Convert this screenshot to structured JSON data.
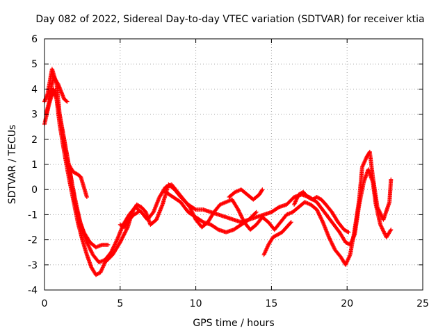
{
  "chart_data": {
    "type": "scatter",
    "title": "Day 082 of 2022, Sidereal Day-to-day VTEC variation (SDTVAR) for receiver ktia",
    "xlabel": "GPS time / hours",
    "ylabel": "SDTVAR / TECUs",
    "xlim": [
      0,
      25
    ],
    "ylim": [
      -4,
      6
    ],
    "x_ticks": [
      0,
      5,
      10,
      15,
      20,
      25
    ],
    "y_ticks": [
      -4,
      -3,
      -2,
      -1,
      0,
      1,
      2,
      3,
      4,
      5,
      6
    ],
    "grid": true,
    "marker": "+",
    "series_color": "#ff0000",
    "series": [
      {
        "name": "trace-1",
        "points": [
          [
            0.0,
            3.5
          ],
          [
            0.2,
            3.8
          ],
          [
            0.5,
            4.8
          ],
          [
            0.8,
            4.2
          ],
          [
            1.0,
            3.0
          ],
          [
            1.3,
            2.0
          ],
          [
            1.6,
            1.0
          ],
          [
            1.8,
            0.3
          ],
          [
            2.0,
            -0.5
          ],
          [
            2.3,
            -1.2
          ],
          [
            2.6,
            -1.7
          ],
          [
            3.0,
            -2.1
          ],
          [
            3.4,
            -2.3
          ],
          [
            3.8,
            -2.2
          ],
          [
            4.2,
            -2.2
          ]
        ]
      },
      {
        "name": "trace-2",
        "points": [
          [
            0.0,
            2.6
          ],
          [
            0.3,
            3.4
          ],
          [
            0.6,
            4.0
          ],
          [
            0.8,
            3.6
          ],
          [
            1.0,
            2.6
          ],
          [
            1.3,
            1.5
          ],
          [
            1.6,
            0.5
          ],
          [
            1.9,
            -0.4
          ],
          [
            2.2,
            -1.3
          ],
          [
            2.5,
            -2.0
          ],
          [
            2.8,
            -2.6
          ],
          [
            3.1,
            -3.1
          ],
          [
            3.4,
            -3.4
          ],
          [
            3.7,
            -3.3
          ],
          [
            4.0,
            -2.9
          ],
          [
            4.5,
            -2.6
          ],
          [
            5.0,
            -2.1
          ],
          [
            5.5,
            -1.5
          ],
          [
            5.8,
            -0.9
          ],
          [
            6.1,
            -0.6
          ],
          [
            6.4,
            -0.7
          ],
          [
            6.7,
            -0.9
          ],
          [
            7.0,
            -1.4
          ],
          [
            7.4,
            -1.2
          ],
          [
            7.8,
            -0.6
          ],
          [
            8.2,
            0.2
          ],
          [
            8.6,
            0.0
          ],
          [
            9.0,
            -0.3
          ],
          [
            9.5,
            -0.6
          ],
          [
            10.0,
            -0.8
          ],
          [
            10.5,
            -0.8
          ],
          [
            11.0,
            -0.9
          ],
          [
            11.5,
            -1.0
          ],
          [
            12.0,
            -1.1
          ],
          [
            12.5,
            -1.2
          ],
          [
            13.0,
            -1.3
          ],
          [
            13.5,
            -1.2
          ],
          [
            14.0,
            -1.1
          ],
          [
            14.5,
            -1.0
          ],
          [
            15.0,
            -0.9
          ],
          [
            15.5,
            -0.7
          ],
          [
            16.0,
            -0.6
          ],
          [
            16.5,
            -0.3
          ],
          [
            17.0,
            -0.2
          ],
          [
            17.5,
            -0.3
          ],
          [
            18.0,
            -0.5
          ],
          [
            18.5,
            -0.9
          ],
          [
            19.0,
            -1.3
          ],
          [
            19.5,
            -1.7
          ],
          [
            19.9,
            -2.1
          ],
          [
            20.2,
            -2.2
          ],
          [
            20.5,
            -1.8
          ],
          [
            20.8,
            -0.6
          ],
          [
            21.1,
            0.3
          ],
          [
            21.4,
            0.8
          ],
          [
            21.7,
            0.3
          ],
          [
            21.9,
            -0.6
          ],
          [
            22.2,
            -1.4
          ],
          [
            22.6,
            -1.9
          ],
          [
            22.9,
            -1.6
          ]
        ]
      },
      {
        "name": "trace-3",
        "points": [
          [
            0.1,
            3.0
          ],
          [
            0.4,
            3.7
          ],
          [
            0.7,
            3.9
          ],
          [
            0.9,
            3.3
          ],
          [
            1.2,
            2.3
          ],
          [
            1.5,
            1.3
          ],
          [
            1.8,
            0.3
          ],
          [
            2.1,
            -0.6
          ],
          [
            2.4,
            -1.4
          ],
          [
            2.8,
            -2.1
          ],
          [
            3.2,
            -2.6
          ],
          [
            3.6,
            -2.9
          ],
          [
            4.0,
            -2.8
          ],
          [
            4.4,
            -2.5
          ],
          [
            4.8,
            -2.0
          ],
          [
            5.2,
            -1.4
          ],
          [
            5.6,
            -1.0
          ],
          [
            6.0,
            -0.7
          ],
          [
            6.4,
            -0.9
          ],
          [
            6.8,
            -1.2
          ],
          [
            7.2,
            -0.9
          ],
          [
            7.6,
            -0.3
          ],
          [
            8.0,
            0.1
          ],
          [
            8.4,
            0.2
          ],
          [
            8.8,
            -0.1
          ],
          [
            9.2,
            -0.4
          ],
          [
            9.6,
            -0.7
          ],
          [
            10.0,
            -1.2
          ],
          [
            10.4,
            -1.5
          ],
          [
            10.8,
            -1.3
          ],
          [
            11.2,
            -0.9
          ],
          [
            11.6,
            -0.6
          ],
          [
            12.0,
            -0.5
          ],
          [
            12.4,
            -0.4
          ],
          [
            12.8,
            -0.8
          ],
          [
            13.2,
            -1.3
          ],
          [
            13.6,
            -1.6
          ],
          [
            14.0,
            -1.4
          ],
          [
            14.4,
            -1.1
          ],
          [
            14.8,
            -1.3
          ],
          [
            15.2,
            -1.6
          ],
          [
            15.6,
            -1.3
          ],
          [
            16.0,
            -1.0
          ],
          [
            16.4,
            -0.9
          ],
          [
            16.8,
            -0.7
          ],
          [
            17.2,
            -0.5
          ],
          [
            17.6,
            -0.6
          ],
          [
            18.0,
            -0.8
          ],
          [
            18.4,
            -1.3
          ],
          [
            18.8,
            -1.9
          ],
          [
            19.2,
            -2.4
          ],
          [
            19.6,
            -2.7
          ],
          [
            19.9,
            -3.0
          ],
          [
            20.2,
            -2.6
          ],
          [
            20.5,
            -1.6
          ],
          [
            20.8,
            -0.4
          ],
          [
            21.0,
            0.9
          ],
          [
            21.3,
            1.3
          ],
          [
            21.5,
            1.5
          ],
          [
            21.7,
            0.5
          ],
          [
            22.0,
            -0.7
          ],
          [
            22.4,
            -1.2
          ],
          [
            22.8,
            -0.5
          ],
          [
            22.9,
            0.4
          ]
        ]
      },
      {
        "name": "trace-4",
        "points": [
          [
            0.3,
            3.6
          ],
          [
            0.6,
            4.5
          ],
          [
            0.9,
            4.2
          ],
          [
            1.1,
            3.9
          ],
          [
            1.3,
            3.6
          ],
          [
            1.5,
            3.5
          ]
        ]
      },
      {
        "name": "trace-5",
        "points": [
          [
            1.6,
            1.0
          ],
          [
            1.9,
            0.7
          ],
          [
            2.2,
            0.6
          ],
          [
            2.4,
            0.5
          ],
          [
            2.6,
            0.1
          ],
          [
            2.8,
            -0.3
          ]
        ]
      },
      {
        "name": "trace-6",
        "points": [
          [
            5.0,
            -1.4
          ],
          [
            5.3,
            -1.5
          ],
          [
            5.6,
            -1.2
          ],
          [
            5.9,
            -1.0
          ],
          [
            6.2,
            -0.9
          ]
        ]
      },
      {
        "name": "trace-7",
        "points": [
          [
            8.0,
            -0.1
          ],
          [
            8.5,
            -0.3
          ],
          [
            9.0,
            -0.5
          ],
          [
            9.5,
            -0.9
          ],
          [
            10.0,
            -1.1
          ],
          [
            10.5,
            -1.3
          ],
          [
            11.0,
            -1.4
          ],
          [
            11.5,
            -1.6
          ],
          [
            12.0,
            -1.7
          ],
          [
            12.5,
            -1.6
          ],
          [
            13.0,
            -1.4
          ],
          [
            13.5,
            -1.2
          ],
          [
            14.0,
            -0.9
          ]
        ]
      },
      {
        "name": "trace-8",
        "points": [
          [
            12.2,
            -0.3
          ],
          [
            12.6,
            -0.1
          ],
          [
            13.0,
            0.0
          ],
          [
            13.4,
            -0.2
          ],
          [
            13.8,
            -0.4
          ],
          [
            14.2,
            -0.2
          ],
          [
            14.4,
            0.0
          ]
        ]
      },
      {
        "name": "trace-9",
        "points": [
          [
            14.5,
            -2.6
          ],
          [
            14.8,
            -2.2
          ],
          [
            15.1,
            -1.9
          ],
          [
            15.4,
            -1.8
          ],
          [
            15.7,
            -1.7
          ],
          [
            16.0,
            -1.5
          ],
          [
            16.3,
            -1.3
          ]
        ]
      },
      {
        "name": "trace-10",
        "points": [
          [
            16.5,
            -0.6
          ],
          [
            16.8,
            -0.2
          ],
          [
            17.1,
            -0.1
          ],
          [
            17.4,
            -0.3
          ],
          [
            17.7,
            -0.4
          ],
          [
            18.0,
            -0.3
          ],
          [
            18.3,
            -0.4
          ],
          [
            18.6,
            -0.6
          ],
          [
            19.0,
            -0.9
          ],
          [
            19.4,
            -1.3
          ],
          [
            19.8,
            -1.6
          ],
          [
            20.1,
            -1.7
          ]
        ]
      }
    ]
  }
}
